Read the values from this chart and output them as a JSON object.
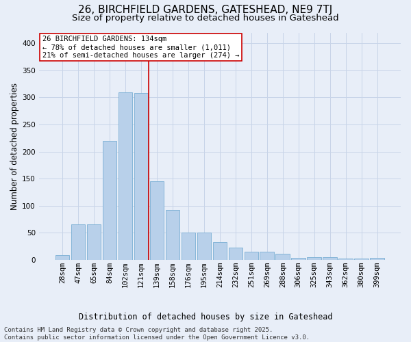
{
  "title_line1": "26, BIRCHFIELD GARDENS, GATESHEAD, NE9 7TJ",
  "title_line2": "Size of property relative to detached houses in Gateshead",
  "xlabel": "Distribution of detached houses by size in Gateshead",
  "ylabel": "Number of detached properties",
  "categories": [
    "28sqm",
    "47sqm",
    "65sqm",
    "84sqm",
    "102sqm",
    "121sqm",
    "139sqm",
    "158sqm",
    "176sqm",
    "195sqm",
    "214sqm",
    "232sqm",
    "251sqm",
    "269sqm",
    "288sqm",
    "306sqm",
    "325sqm",
    "343sqm",
    "362sqm",
    "380sqm",
    "399sqm"
  ],
  "values": [
    8,
    65,
    65,
    220,
    310,
    308,
    145,
    92,
    50,
    50,
    32,
    23,
    15,
    15,
    11,
    4,
    5,
    5,
    2,
    2,
    3
  ],
  "bar_color": "#b8d0ea",
  "bar_edge_color": "#7aafd4",
  "grid_color": "#c8d4e8",
  "background_color": "#e8eef8",
  "vline_x": 5.5,
  "vline_color": "#cc0000",
  "annotation_line1": "26 BIRCHFIELD GARDENS: 134sqm",
  "annotation_line2": "← 78% of detached houses are smaller (1,011)",
  "annotation_line3": "21% of semi-detached houses are larger (274) →",
  "annotation_box_color": "#cc0000",
  "annotation_face_color": "white",
  "footer_line1": "Contains HM Land Registry data © Crown copyright and database right 2025.",
  "footer_line2": "Contains public sector information licensed under the Open Government Licence v3.0.",
  "ylim": [
    0,
    420
  ],
  "yticks": [
    0,
    50,
    100,
    150,
    200,
    250,
    300,
    350,
    400
  ],
  "title_fontsize": 11,
  "subtitle_fontsize": 9.5,
  "ylabel_fontsize": 8.5,
  "xlabel_fontsize": 8.5,
  "tick_fontsize": 7.5,
  "annotation_fontsize": 7.5,
  "footer_fontsize": 6.5
}
